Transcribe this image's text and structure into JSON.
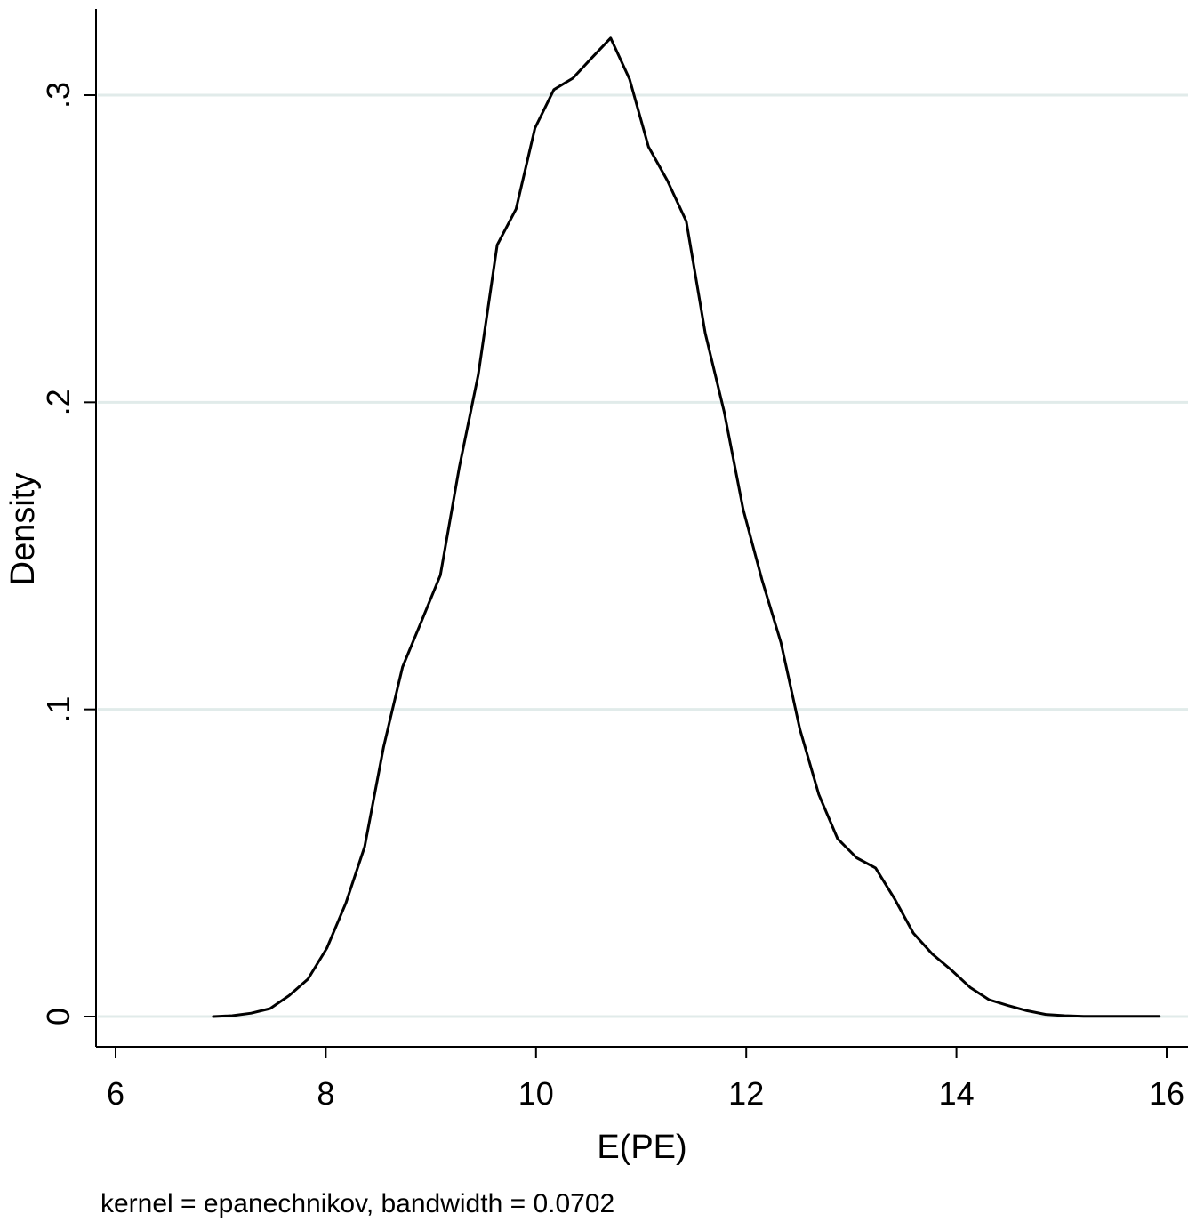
{
  "chart_data": {
    "type": "line",
    "title": "",
    "xlabel": "E(PE)",
    "ylabel": "Density",
    "note": "kernel = epanechnikov, bandwidth = 0.0702",
    "xlim": [
      6,
      16
    ],
    "ylim": [
      0,
      0.32
    ],
    "x_ticks": [
      {
        "value": 6,
        "label": "6"
      },
      {
        "value": 8,
        "label": "8"
      },
      {
        "value": 10,
        "label": "10"
      },
      {
        "value": 12,
        "label": "12"
      },
      {
        "value": 14,
        "label": "14"
      },
      {
        "value": 16,
        "label": "16"
      }
    ],
    "y_ticks": [
      {
        "value": 0,
        "label": "0"
      },
      {
        "value": 0.1,
        "label": ".1"
      },
      {
        "value": 0.2,
        "label": ".2"
      },
      {
        "value": 0.3,
        "label": ".3"
      }
    ],
    "grid": "horizontal",
    "colors": {
      "line": "#000000",
      "grid": "#e1ebea",
      "axis": "#000000",
      "background": "#ffffff"
    },
    "series": [
      {
        "x": [
          6.93,
          7.11,
          7.29,
          7.47,
          7.65,
          7.83,
          8.01,
          8.19,
          8.37,
          8.55,
          8.73,
          8.91,
          9.09,
          9.27,
          9.45,
          9.63,
          9.81,
          9.99,
          10.17,
          10.35,
          10.53,
          10.71,
          10.89,
          11.07,
          11.25,
          11.43,
          11.61,
          11.79,
          11.97,
          12.15,
          12.33,
          12.51,
          12.69,
          12.87,
          13.05,
          13.23,
          13.41,
          13.59,
          13.77,
          13.95,
          14.13,
          14.31,
          14.49,
          14.67,
          14.85,
          15.03,
          15.21,
          15.39,
          15.57,
          15.75,
          15.93
        ],
        "y": [
          0,
          0.0003,
          0.0011,
          0.0026,
          0.0068,
          0.0122,
          0.0223,
          0.0369,
          0.0553,
          0.0878,
          0.1138,
          0.1287,
          0.1437,
          0.1788,
          0.2089,
          0.2512,
          0.2629,
          0.2893,
          0.3018,
          0.3055,
          0.3121,
          0.3186,
          0.3052,
          0.2832,
          0.2722,
          0.2589,
          0.2225,
          0.1969,
          0.1652,
          0.1422,
          0.1218,
          0.0936,
          0.0723,
          0.0579,
          0.0517,
          0.0484,
          0.0384,
          0.0272,
          0.0204,
          0.0152,
          0.0095,
          0.0055,
          0.0036,
          0.0019,
          0.0007,
          0.0003,
          0.0001,
          0.0001,
          0.0001,
          0.0001,
          0.0001
        ]
      }
    ]
  }
}
